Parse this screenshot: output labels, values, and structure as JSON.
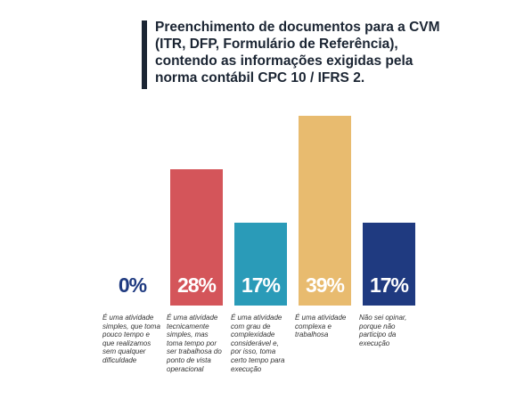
{
  "chart_data": {
    "type": "bar",
    "title": "Preenchimento de documentos para a CVM (ITR, DFP, Formulário de Referência), contendo as informações exigidas pela norma contábil CPC 10 / IFRS 2.",
    "categories": [
      "É uma atividade simples, que toma pouco tempo e que realizamos sem qualquer dificuldade",
      "É uma atividade tecnicamente simples, mas toma tempo por ser trabalhosa do ponto de vista operacional",
      "É uma atividade com grau de complexidade considerável e, por isso, toma certo tempo para execução",
      "É uma atividade complexa e trabalhosa",
      "Não sei opinar, porque não participo da execução"
    ],
    "values": [
      0,
      28,
      17,
      39,
      17
    ],
    "value_labels": [
      "0%",
      "28%",
      "17%",
      "39%",
      "17%"
    ],
    "colors": [
      "#1f3a80",
      "#d4555a",
      "#2a9bb8",
      "#e8bb6f",
      "#1f3a80"
    ]
  }
}
